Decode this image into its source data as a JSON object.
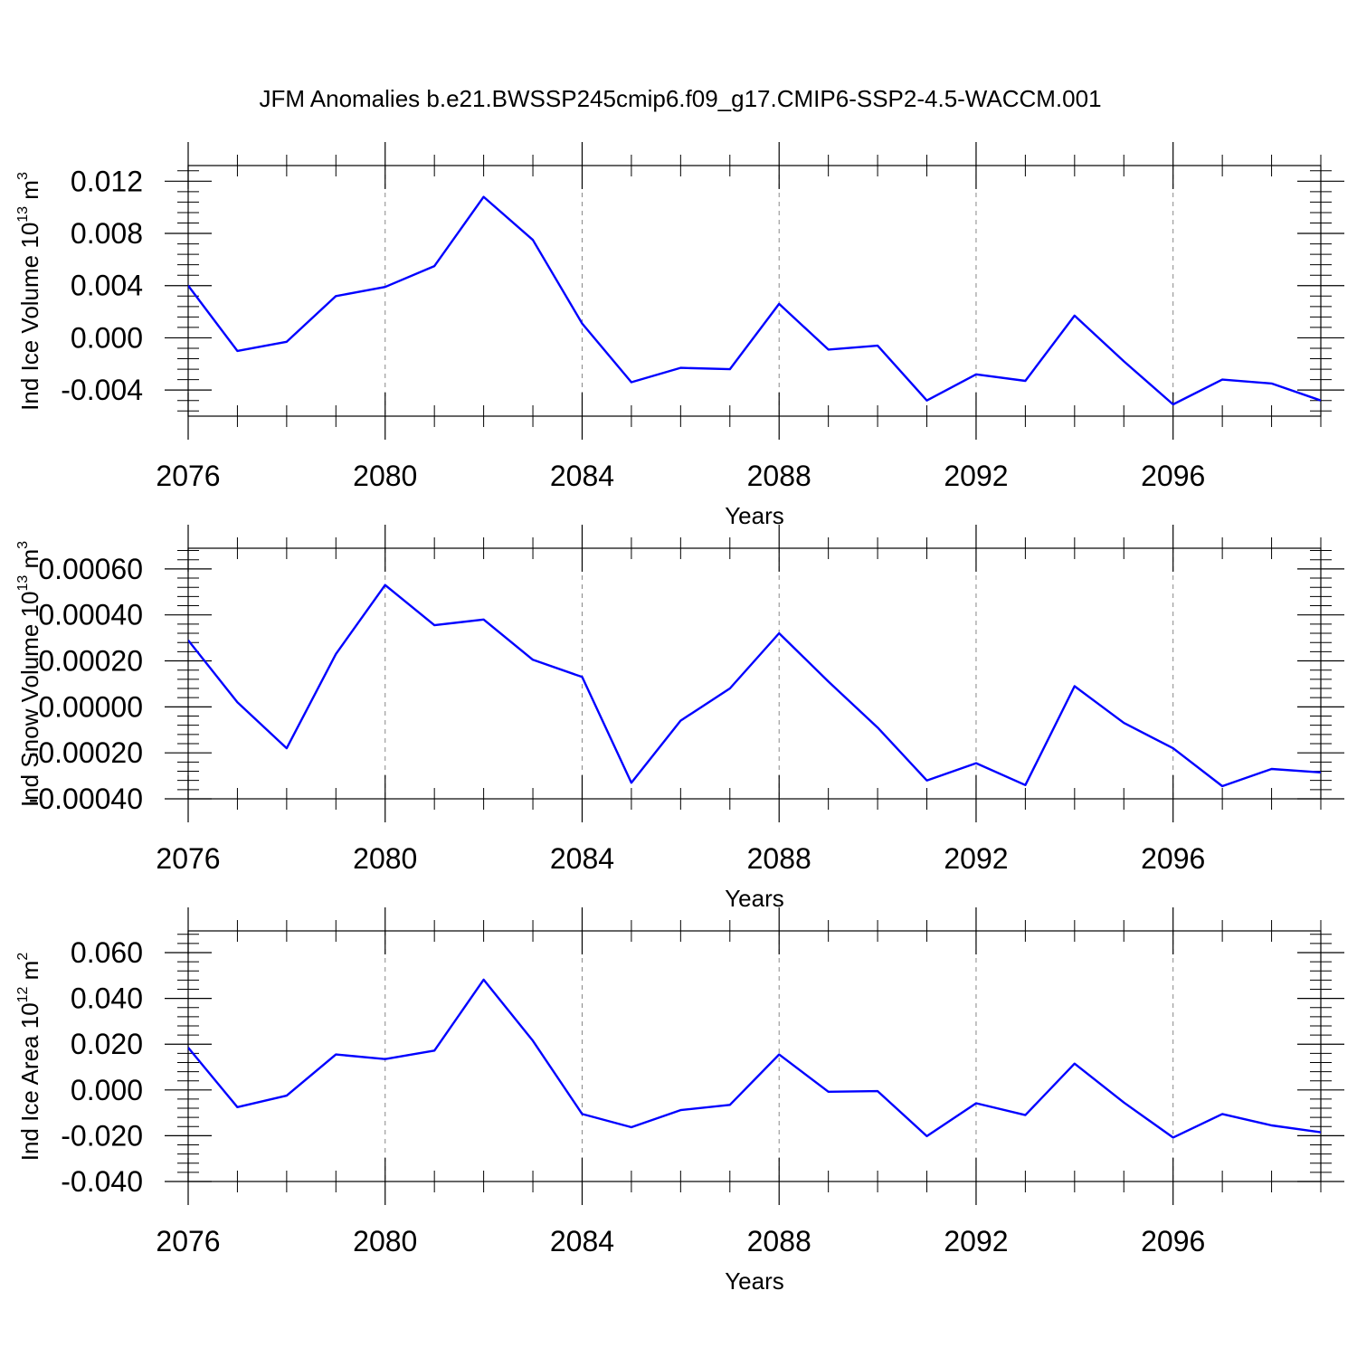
{
  "title": "JFM Anomalies b.e21.BWSSP245cmip6.f09_g17.CMIP6-SSP2-4.5-WACCM.001",
  "colors": {
    "line": "#0000ff",
    "axis": "#000000",
    "grid": "#888888"
  },
  "chart_data": [
    {
      "type": "line",
      "xlabel": "Years",
      "ylabel": "Ind Ice Volume 10",
      "ylabel_exp": "13",
      "ylabel_unit": " m",
      "ylabel_unit_exp": "3",
      "xlim": [
        2076,
        2099
      ],
      "ylim": [
        -0.006,
        0.0132
      ],
      "x_ticks": [
        2076,
        2080,
        2084,
        2088,
        2092,
        2096
      ],
      "x_tick_labels": [
        "2076",
        "2080",
        "2084",
        "2088",
        "2092",
        "2096"
      ],
      "y_ticks": [
        0.012,
        0.008,
        0.004,
        0.0,
        -0.004
      ],
      "y_tick_labels": [
        "0.012",
        "0.008",
        "0.004",
        "0.000",
        "-0.004"
      ],
      "grid": "vertical dashed at major x ticks",
      "x": [
        2076,
        2077,
        2078,
        2079,
        2080,
        2081,
        2082,
        2083,
        2084,
        2085,
        2086,
        2087,
        2088,
        2089,
        2090,
        2091,
        2092,
        2093,
        2094,
        2095,
        2096,
        2097,
        2098,
        2099
      ],
      "values": [
        0.004,
        -0.001,
        -0.0003,
        0.0032,
        0.0039,
        0.0055,
        0.0108,
        0.0075,
        0.0011,
        -0.0034,
        -0.0023,
        -0.0024,
        0.0026,
        -0.0009,
        -0.0006,
        -0.0048,
        -0.0028,
        -0.0033,
        0.0017,
        -0.0018,
        -0.0051,
        -0.0032,
        -0.0035,
        -0.0048
      ]
    },
    {
      "type": "line",
      "xlabel": "Years",
      "ylabel": "Ind Snow Volume 10",
      "ylabel_exp": "13",
      "ylabel_unit": " m",
      "ylabel_unit_exp": "3",
      "xlim": [
        2076,
        2099
      ],
      "ylim": [
        -0.0004,
        0.00069
      ],
      "x_ticks": [
        2076,
        2080,
        2084,
        2088,
        2092,
        2096
      ],
      "x_tick_labels": [
        "2076",
        "2080",
        "2084",
        "2088",
        "2092",
        "2096"
      ],
      "y_ticks": [
        0.0006,
        0.0004,
        0.0002,
        0.0,
        -0.0002,
        -0.0004
      ],
      "y_tick_labels": [
        "0.00060",
        "0.00040",
        "0.00020",
        "0.00000",
        "-0.00020",
        "-0.00040"
      ],
      "grid": "vertical dashed at major x ticks",
      "x": [
        2076,
        2077,
        2078,
        2079,
        2080,
        2081,
        2082,
        2083,
        2084,
        2085,
        2086,
        2087,
        2088,
        2089,
        2090,
        2091,
        2092,
        2093,
        2094,
        2095,
        2096,
        2097,
        2098,
        2099
      ],
      "values": [
        0.00029,
        2e-05,
        -0.00018,
        0.00023,
        0.00053,
        0.000355,
        0.00038,
        0.000205,
        0.00013,
        -0.00033,
        -6e-05,
        8e-05,
        0.00032,
        0.00011,
        -9e-05,
        -0.00032,
        -0.000245,
        -0.00034,
        9e-05,
        -7e-05,
        -0.00018,
        -0.000345,
        -0.00027,
        -0.000285
      ]
    },
    {
      "type": "line",
      "xlabel": "Years",
      "ylabel": "Ind Ice Area 10",
      "ylabel_exp": "12",
      "ylabel_unit": " m",
      "ylabel_unit_exp": "2",
      "xlim": [
        2076,
        2099
      ],
      "ylim": [
        -0.04,
        0.0695
      ],
      "x_ticks": [
        2076,
        2080,
        2084,
        2088,
        2092,
        2096
      ],
      "x_tick_labels": [
        "2076",
        "2080",
        "2084",
        "2088",
        "2092",
        "2096"
      ],
      "y_ticks": [
        0.06,
        0.04,
        0.02,
        0.0,
        -0.02,
        -0.04
      ],
      "y_tick_labels": [
        "0.060",
        "0.040",
        "0.020",
        "0.000",
        "-0.020",
        "-0.040"
      ],
      "grid": "vertical dashed at major x ticks",
      "x": [
        2076,
        2077,
        2078,
        2079,
        2080,
        2081,
        2082,
        2083,
        2084,
        2085,
        2086,
        2087,
        2088,
        2089,
        2090,
        2091,
        2092,
        2093,
        2094,
        2095,
        2096,
        2097,
        2098,
        2099
      ],
      "values": [
        0.0185,
        -0.0075,
        -0.0025,
        0.0155,
        0.0135,
        0.0172,
        0.0482,
        0.0215,
        -0.0105,
        -0.0163,
        -0.0088,
        -0.0065,
        0.0155,
        -0.0008,
        -0.0005,
        -0.0202,
        -0.0058,
        -0.011,
        0.0115,
        -0.0055,
        -0.0208,
        -0.0105,
        -0.0155,
        -0.0185
      ]
    }
  ]
}
